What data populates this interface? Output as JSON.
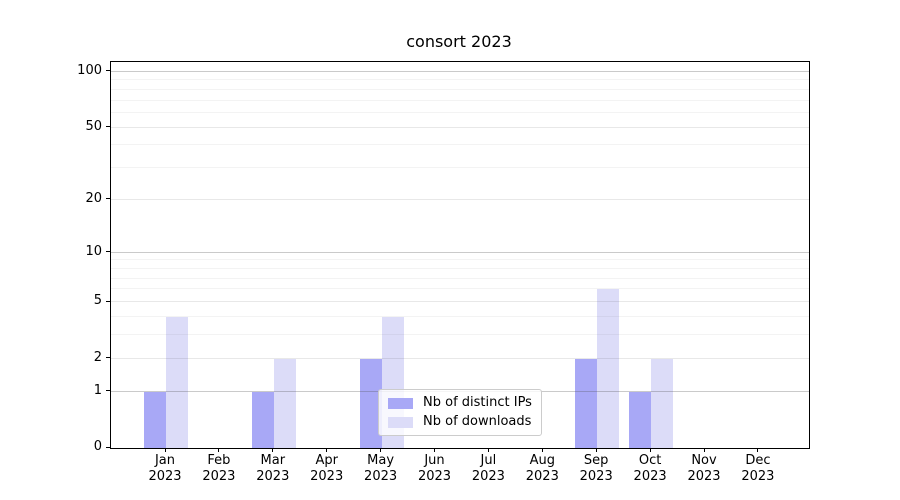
{
  "title": "consort 2023",
  "chart_data": {
    "type": "bar",
    "title": "consort 2023",
    "x_tick_months": [
      "Jan",
      "Feb",
      "Mar",
      "Apr",
      "May",
      "Jun",
      "Jul",
      "Aug",
      "Sep",
      "Oct",
      "Nov",
      "Dec"
    ],
    "x_tick_year": "2023",
    "series": [
      {
        "name": "Nb of distinct IPs",
        "color": "#a8a8f6",
        "values": [
          1,
          0,
          1,
          0,
          2,
          0,
          0,
          0,
          2,
          1,
          0,
          0
        ]
      },
      {
        "name": "Nb of downloads",
        "color": "#dcdcf8",
        "values": [
          4,
          0,
          2,
          0,
          4,
          0,
          0,
          0,
          6,
          2,
          0,
          0
        ]
      }
    ],
    "y_axis": {
      "scale": "log10(1+v)",
      "ticks": [
        0,
        1,
        2,
        5,
        10,
        20,
        50,
        100
      ],
      "major_grid_ticks": [
        1,
        10,
        100
      ],
      "minor_ticks": [
        3,
        4,
        6,
        7,
        8,
        9,
        30,
        40,
        60,
        70,
        80,
        90
      ],
      "ylim": [
        0,
        113
      ]
    },
    "legend": {
      "position": "lower center"
    },
    "grid": true,
    "colors": {
      "background": "#ffffff",
      "spine": "#000000",
      "text": "#000000",
      "major_grid": "#c8c8c8",
      "mid_grid": "#e3e3e3",
      "minor_grid": "#f0f0f0"
    }
  }
}
